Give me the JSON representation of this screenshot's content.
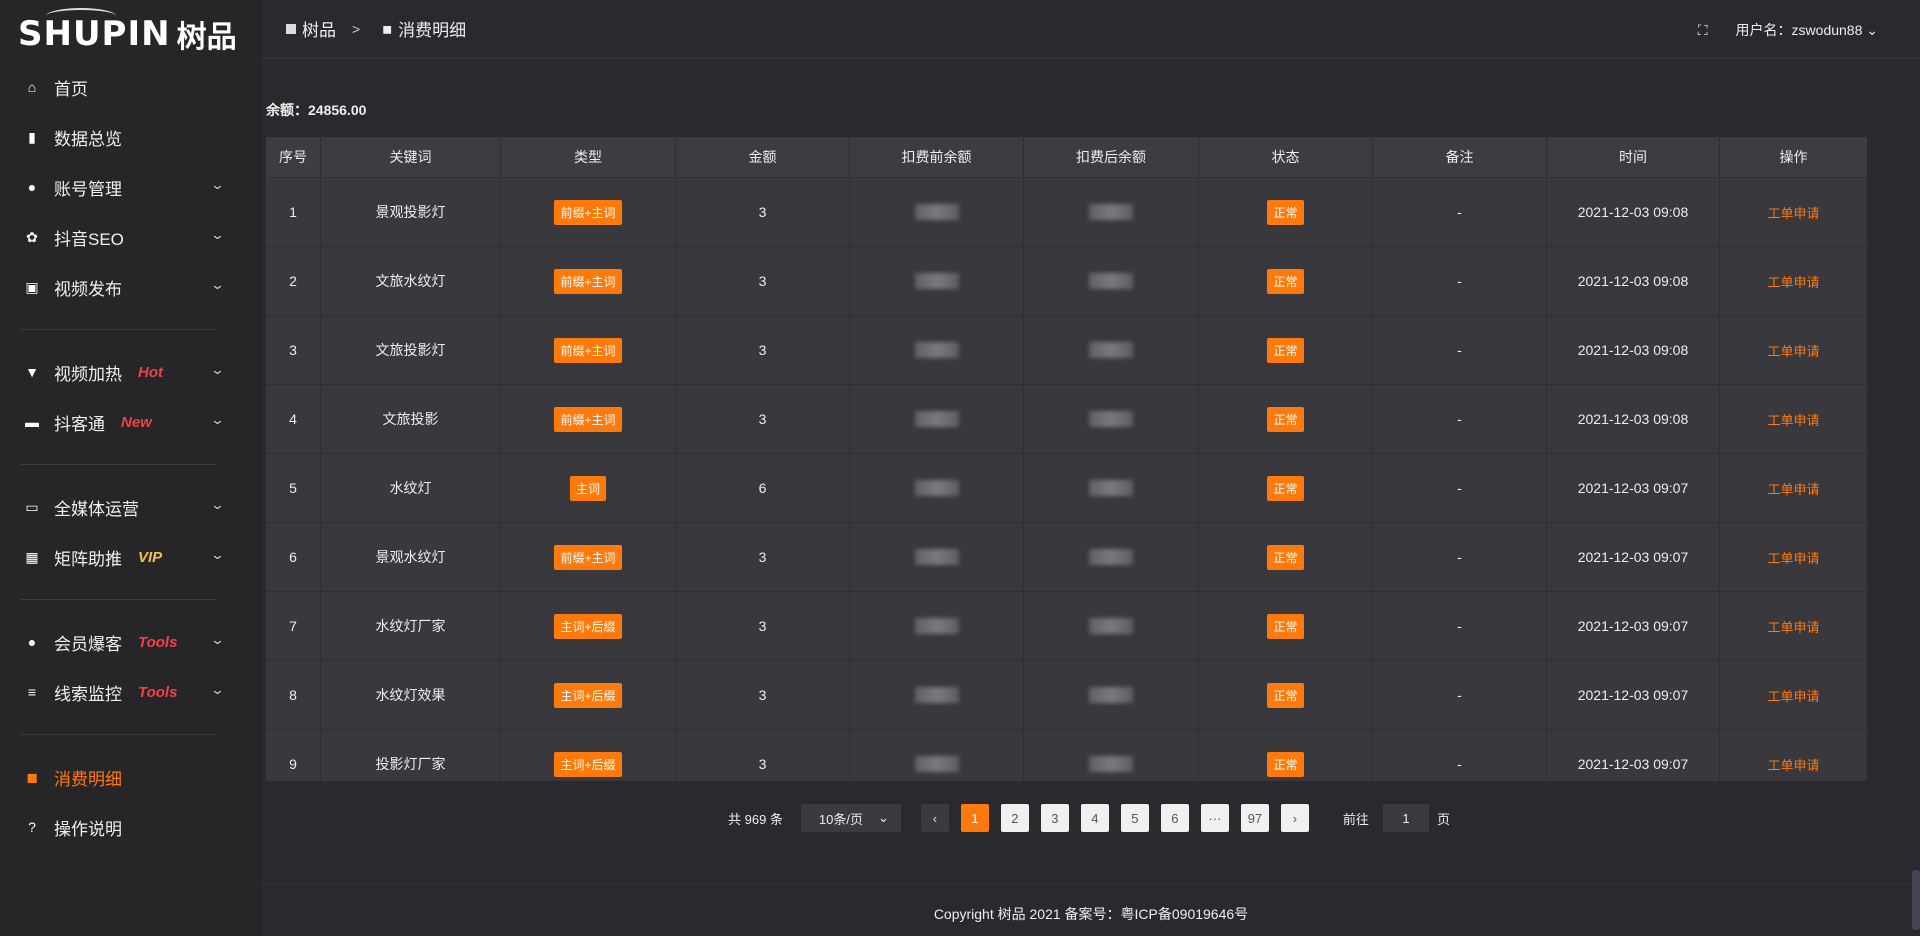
{
  "logo": {
    "en": "SHUPIN",
    "cn": "树品"
  },
  "sidebar": {
    "items": [
      {
        "label": "首页",
        "icon": "home-icon",
        "glyph": "⌂"
      },
      {
        "label": "数据总览",
        "icon": "bar-chart-icon",
        "glyph": "▮"
      },
      {
        "label": "账号管理",
        "icon": "user-icon",
        "glyph": "●",
        "chevron": true
      },
      {
        "label": "抖音SEO",
        "icon": "gear-icon",
        "glyph": "✿",
        "chevron": true
      },
      {
        "label": "视频发布",
        "icon": "video-icon",
        "glyph": "▣",
        "chevron": true
      },
      {
        "label": "视频加热",
        "icon": "flag-icon",
        "glyph": "▼",
        "chevron": true,
        "tag": "Hot",
        "tag_color": "#f0404a"
      },
      {
        "label": "抖客通",
        "icon": "chat-icon",
        "glyph": "▬",
        "chevron": true,
        "tag": "New",
        "tag_color": "#f0404a"
      },
      {
        "label": "全媒体运营",
        "icon": "monitor-icon",
        "glyph": "▭",
        "chevron": true
      },
      {
        "label": "矩阵助推",
        "icon": "grid-icon",
        "glyph": "▦",
        "chevron": true,
        "tag": "VIP",
        "tag_color": "#f5c043"
      },
      {
        "label": "会员爆客",
        "icon": "user-icon",
        "glyph": "●",
        "chevron": true,
        "tag": "Tools",
        "tag_color": "#f0404a"
      },
      {
        "label": "线索监控",
        "icon": "sliders-icon",
        "glyph": "≡",
        "chevron": true,
        "tag": "Tools",
        "tag_color": "#f0404a"
      },
      {
        "label": "消费明细",
        "icon": "wallet-icon",
        "glyph": "◼",
        "active": true
      },
      {
        "label": "操作说明",
        "icon": "help-icon",
        "glyph": "?"
      }
    ]
  },
  "header": {
    "breadcrumb": [
      "树品",
      "消费明细"
    ],
    "separator": ">",
    "username_label": "用户名：zswodun88"
  },
  "balance": "余额：24856.00",
  "table": {
    "columns": [
      "序号",
      "关键词",
      "类型",
      "金额",
      "扣费前余额",
      "扣费后余额",
      "状态",
      "备注",
      "时间",
      "操作"
    ],
    "rows": [
      {
        "no": "1",
        "keyword": "景观投影灯",
        "type": "前缀+主词",
        "amount": "3",
        "status": "正常",
        "note": "-",
        "time": "2021-12-03 09:08",
        "action": "工单申请"
      },
      {
        "no": "2",
        "keyword": "文旅水纹灯",
        "type": "前缀+主词",
        "amount": "3",
        "status": "正常",
        "note": "-",
        "time": "2021-12-03 09:08",
        "action": "工单申请"
      },
      {
        "no": "3",
        "keyword": "文旅投影灯",
        "type": "前缀+主词",
        "amount": "3",
        "status": "正常",
        "note": "-",
        "time": "2021-12-03 09:08",
        "action": "工单申请"
      },
      {
        "no": "4",
        "keyword": "文旅投影",
        "type": "前缀+主词",
        "amount": "3",
        "status": "正常",
        "note": "-",
        "time": "2021-12-03 09:08",
        "action": "工单申请"
      },
      {
        "no": "5",
        "keyword": "水纹灯",
        "type": "主词",
        "amount": "6",
        "status": "正常",
        "note": "-",
        "time": "2021-12-03 09:07",
        "action": "工单申请"
      },
      {
        "no": "6",
        "keyword": "景观水纹灯",
        "type": "前缀+主词",
        "amount": "3",
        "status": "正常",
        "note": "-",
        "time": "2021-12-03 09:07",
        "action": "工单申请"
      },
      {
        "no": "7",
        "keyword": "水纹灯厂家",
        "type": "主词+后缀",
        "amount": "3",
        "status": "正常",
        "note": "-",
        "time": "2021-12-03 09:07",
        "action": "工单申请"
      },
      {
        "no": "8",
        "keyword": "水纹灯效果",
        "type": "主词+后缀",
        "amount": "3",
        "status": "正常",
        "note": "-",
        "time": "2021-12-03 09:07",
        "action": "工单申请"
      },
      {
        "no": "9",
        "keyword": "投影灯厂家",
        "type": "主词+后缀",
        "amount": "3",
        "status": "正常",
        "note": "-",
        "time": "2021-12-03 09:07",
        "action": "工单申请"
      }
    ]
  },
  "pagination": {
    "total": "共 969 条",
    "page_size": "10条/页",
    "pages": [
      "1",
      "2",
      "3",
      "4",
      "5",
      "6",
      "···",
      "97"
    ],
    "current": "1",
    "goto_label": "前往",
    "goto_value": "1",
    "page_unit": "页"
  },
  "footer": "Copyright 树品 2021 备案号：粤ICP备09019646号",
  "colors": {
    "accent": "#ff7a0a",
    "background": "#2a2a2e",
    "sidebar": "#262629",
    "table": "#38383d"
  }
}
